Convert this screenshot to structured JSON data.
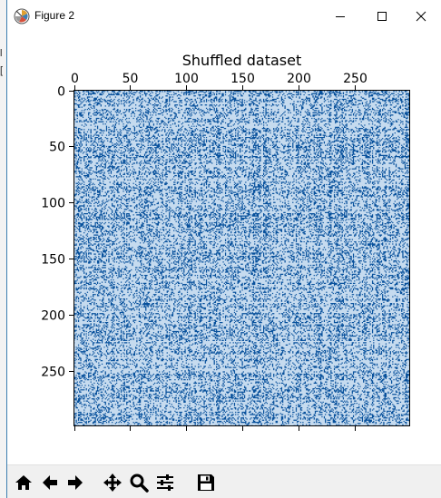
{
  "window": {
    "title": "Figure 2",
    "controls": [
      "minimize",
      "maximize",
      "close"
    ]
  },
  "background_window": {
    "visible_glyphs": [
      "l",
      "["
    ]
  },
  "figure": {
    "title": "Shuffled dataset",
    "colors": {
      "light": "#c6dbef",
      "dark": "#08519c",
      "mid": "#2171b5"
    }
  },
  "chart_data": {
    "type": "heatmap",
    "title": "Shuffled dataset",
    "xlabel": "",
    "ylabel": "",
    "xlim": [
      0,
      300
    ],
    "ylim": [
      300,
      0
    ],
    "x_ticks": [
      0,
      50,
      100,
      150,
      200,
      250
    ],
    "y_ticks": [
      0,
      50,
      100,
      150,
      200,
      250
    ],
    "x_axis_position": "top",
    "shape": [
      300,
      300
    ],
    "values": "binary matrix (two shades of blue); individual cell values not legible",
    "cmap_values": [
      0,
      1
    ]
  },
  "toolbar": {
    "buttons": [
      {
        "icon": "home-icon",
        "name": "home"
      },
      {
        "icon": "arrow-left-icon",
        "name": "back"
      },
      {
        "icon": "arrow-right-icon",
        "name": "forward"
      },
      {
        "icon": "move-icon",
        "name": "pan"
      },
      {
        "icon": "magnifier-icon",
        "name": "zoom"
      },
      {
        "icon": "sliders-icon",
        "name": "configure-subplots"
      },
      {
        "icon": "floppy-disk-icon",
        "name": "save"
      }
    ]
  }
}
